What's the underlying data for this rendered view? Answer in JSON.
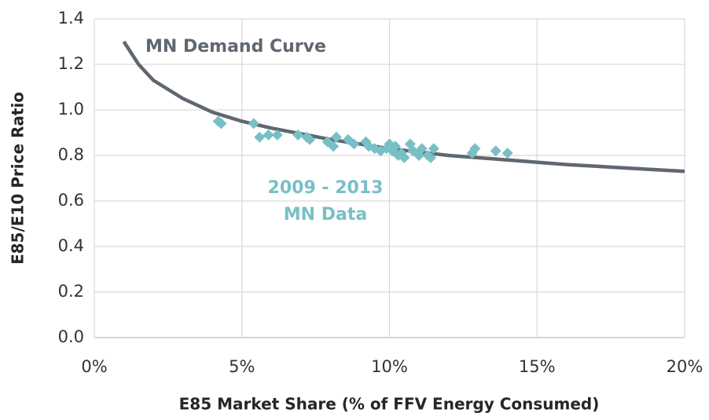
{
  "chart_data": {
    "type": "scatter",
    "xlabel": "E85 Market Share (% of FFV Energy Consumed)",
    "ylabel": "E85/E10 Price Ratio",
    "xlim": [
      0,
      20
    ],
    "xticks": [
      {
        "value": 0,
        "label": "0%"
      },
      {
        "value": 5,
        "label": "5%"
      },
      {
        "value": 10,
        "label": "10%"
      },
      {
        "value": 15,
        "label": "15%"
      },
      {
        "value": 20,
        "label": "20%"
      }
    ],
    "ylim": [
      0,
      1.4
    ],
    "yticks": [
      {
        "value": 0,
        "label": "0.0"
      },
      0.2,
      0.4,
      0.6,
      0.8,
      {
        "value": 1,
        "label": "1.0"
      },
      1.2,
      1.4
    ],
    "grid": true,
    "series": [
      {
        "type": "line",
        "color": "#5f6770",
        "x": [
          1,
          1.5,
          2,
          3,
          4,
          5,
          6,
          8,
          10,
          12,
          14,
          16,
          18,
          20
        ],
        "values": [
          1.3,
          1.2,
          1.13,
          1.05,
          0.99,
          0.95,
          0.92,
          0.87,
          0.83,
          0.8,
          0.78,
          0.76,
          0.745,
          0.73
        ]
      },
      {
        "type": "scatter",
        "color": "#79bfc6",
        "x": [
          4.2,
          4.3,
          5.4,
          5.6,
          5.9,
          6.2,
          6.9,
          7.2,
          7.3,
          7.9,
          8.1,
          8.2,
          8.6,
          8.8,
          9.2,
          9.3,
          9.5,
          9.7,
          9.9,
          10.0,
          10.1,
          10.2,
          10.3,
          10.4,
          10.5,
          10.7,
          10.8,
          11.0,
          11.1,
          11.3,
          11.4,
          11.5,
          12.8,
          12.9,
          13.6,
          14.0
        ],
        "values": [
          0.95,
          0.94,
          0.94,
          0.88,
          0.89,
          0.89,
          0.89,
          0.88,
          0.87,
          0.86,
          0.84,
          0.88,
          0.87,
          0.85,
          0.86,
          0.84,
          0.83,
          0.82,
          0.83,
          0.85,
          0.82,
          0.84,
          0.8,
          0.81,
          0.79,
          0.85,
          0.82,
          0.8,
          0.83,
          0.8,
          0.79,
          0.83,
          0.81,
          0.83,
          0.82,
          0.81
        ]
      }
    ],
    "annotations": [
      {
        "lines": [
          "MN Demand Curve"
        ],
        "color": "#5f6770"
      },
      {
        "lines": [
          "2009 - 2013",
          "MN Data"
        ],
        "color": "#79bfc6"
      }
    ]
  }
}
